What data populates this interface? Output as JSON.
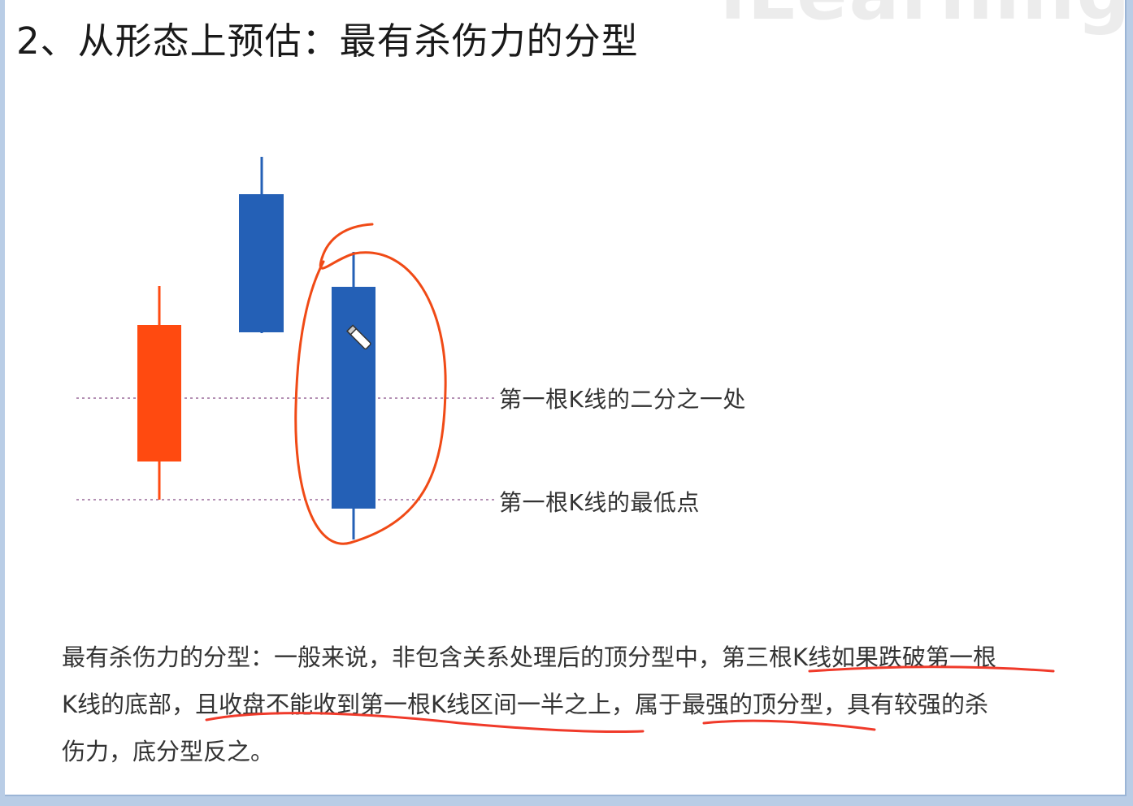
{
  "watermark": "iLearning",
  "title": "2、从形态上预估：最有杀伤力的分型",
  "chart": {
    "labels": {
      "half_level": "第一根K线的二分之一处",
      "low_level": "第一根K线的最低点"
    },
    "colors": {
      "bullish_candle": "#ff4a10",
      "bearish_candle": "#2460b6",
      "annotation": "#f04a16",
      "dotted_line": "#9a6a9a"
    }
  },
  "paragraph": {
    "line1": "最有杀伤力的分型：一般来说，非包含关系处理后的顶分型中，第三根K线如果跌破第一根",
    "line2": "K线的底部，且收盘不能收到第一根K线区间一半之上，属于最强的顶分型，具有较强的杀",
    "line3": "伤力，底分型反之。"
  }
}
